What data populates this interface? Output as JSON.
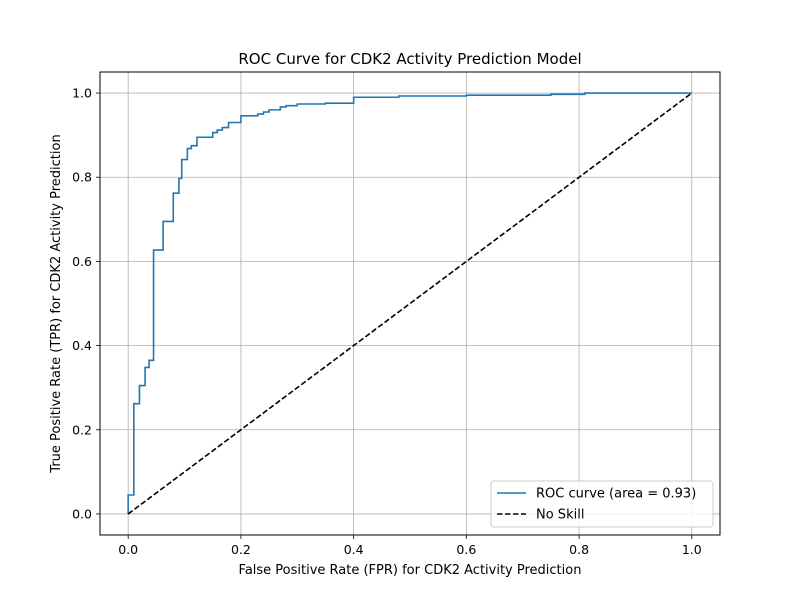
{
  "chart_data": {
    "type": "line",
    "title": "ROC Curve for CDK2 Activity Prediction Model",
    "xlabel": "False Positive Rate (FPR) for CDK2 Activity Prediction",
    "ylabel": "True Positive Rate (TPR) for CDK2 Activity Prediction",
    "xlim": [
      -0.05,
      1.05
    ],
    "ylim": [
      -0.05,
      1.05
    ],
    "xticks": [
      0.0,
      0.2,
      0.4,
      0.6,
      0.8,
      1.0
    ],
    "yticks": [
      0.0,
      0.2,
      0.4,
      0.6,
      0.8,
      1.0
    ],
    "xtick_labels": [
      "0.0",
      "0.2",
      "0.4",
      "0.6",
      "0.8",
      "1.0"
    ],
    "ytick_labels": [
      "0.0",
      "0.2",
      "0.4",
      "0.6",
      "0.8",
      "1.0"
    ],
    "grid": true,
    "legend_position": "lower-right",
    "series": [
      {
        "name": "ROC curve (area = 0.93)",
        "style": "solid",
        "color": "#1f77b4",
        "x": [
          0.0,
          0.0,
          0.01,
          0.01,
          0.02,
          0.02,
          0.03,
          0.03,
          0.037,
          0.037,
          0.045,
          0.045,
          0.062,
          0.062,
          0.08,
          0.08,
          0.09,
          0.09,
          0.095,
          0.095,
          0.105,
          0.105,
          0.112,
          0.112,
          0.122,
          0.122,
          0.15,
          0.15,
          0.158,
          0.158,
          0.167,
          0.167,
          0.178,
          0.178,
          0.2,
          0.2,
          0.23,
          0.23,
          0.24,
          0.24,
          0.25,
          0.25,
          0.27,
          0.27,
          0.28,
          0.28,
          0.3,
          0.3,
          0.35,
          0.35,
          0.4,
          0.4,
          0.48,
          0.48,
          0.6,
          0.6,
          0.75,
          0.75,
          0.81,
          0.81,
          1.0
        ],
        "y": [
          0.0,
          0.045,
          0.045,
          0.262,
          0.262,
          0.305,
          0.305,
          0.348,
          0.348,
          0.365,
          0.365,
          0.627,
          0.627,
          0.695,
          0.695,
          0.762,
          0.762,
          0.797,
          0.797,
          0.842,
          0.842,
          0.868,
          0.868,
          0.875,
          0.875,
          0.895,
          0.895,
          0.906,
          0.906,
          0.912,
          0.912,
          0.918,
          0.918,
          0.93,
          0.93,
          0.946,
          0.946,
          0.95,
          0.95,
          0.955,
          0.955,
          0.96,
          0.96,
          0.967,
          0.967,
          0.97,
          0.97,
          0.974,
          0.974,
          0.976,
          0.976,
          0.99,
          0.99,
          0.993,
          0.993,
          0.995,
          0.995,
          0.997,
          0.997,
          1.0,
          1.0
        ]
      },
      {
        "name": "No Skill",
        "style": "dashed",
        "color": "#000000",
        "x": [
          0.0,
          1.0
        ],
        "y": [
          0.0,
          1.0
        ]
      }
    ]
  }
}
